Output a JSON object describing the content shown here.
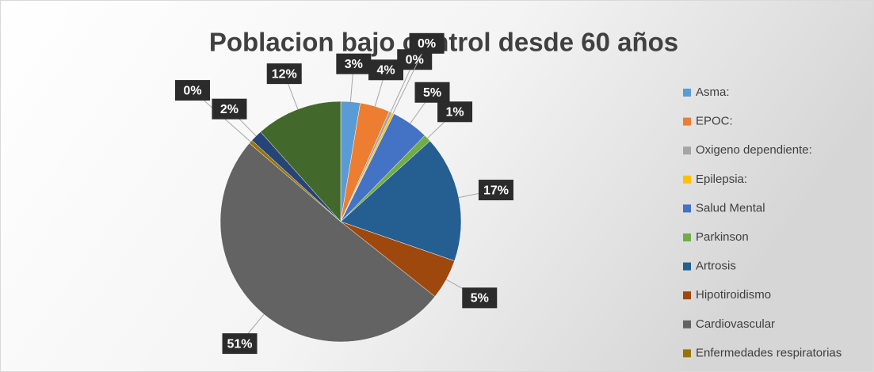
{
  "chart_data": {
    "type": "pie",
    "title": "Poblacion bajo control desde 60 años",
    "categories": [
      "Asma:",
      "EPOC:",
      "Oxigeno dependiente:",
      "Epilepsia:",
      "Salud Mental",
      "Parkinson",
      "Artrosis",
      "Hipotiroidismo",
      "Cardiovascular",
      "Enfermedades respiratorias",
      null,
      null
    ],
    "values": [
      2.6,
      4,
      0.4,
      0.3,
      5,
      1,
      17,
      5.4,
      50.6,
      0.5,
      1.6,
      11.6
    ],
    "value_labels": [
      "3%",
      "4%",
      "0%",
      "0%",
      "5%",
      "1%",
      "17%",
      "5%",
      "51%",
      "0%",
      "2%",
      "12%"
    ],
    "colors": [
      "#5b9bd5",
      "#ed7d31",
      "#a5a5a5",
      "#ffc000",
      "#4472c4",
      "#70ad47",
      "#255e91",
      "#9e480e",
      "#636363",
      "#997300",
      "#264478",
      "#43682b"
    ],
    "legend": "right"
  }
}
